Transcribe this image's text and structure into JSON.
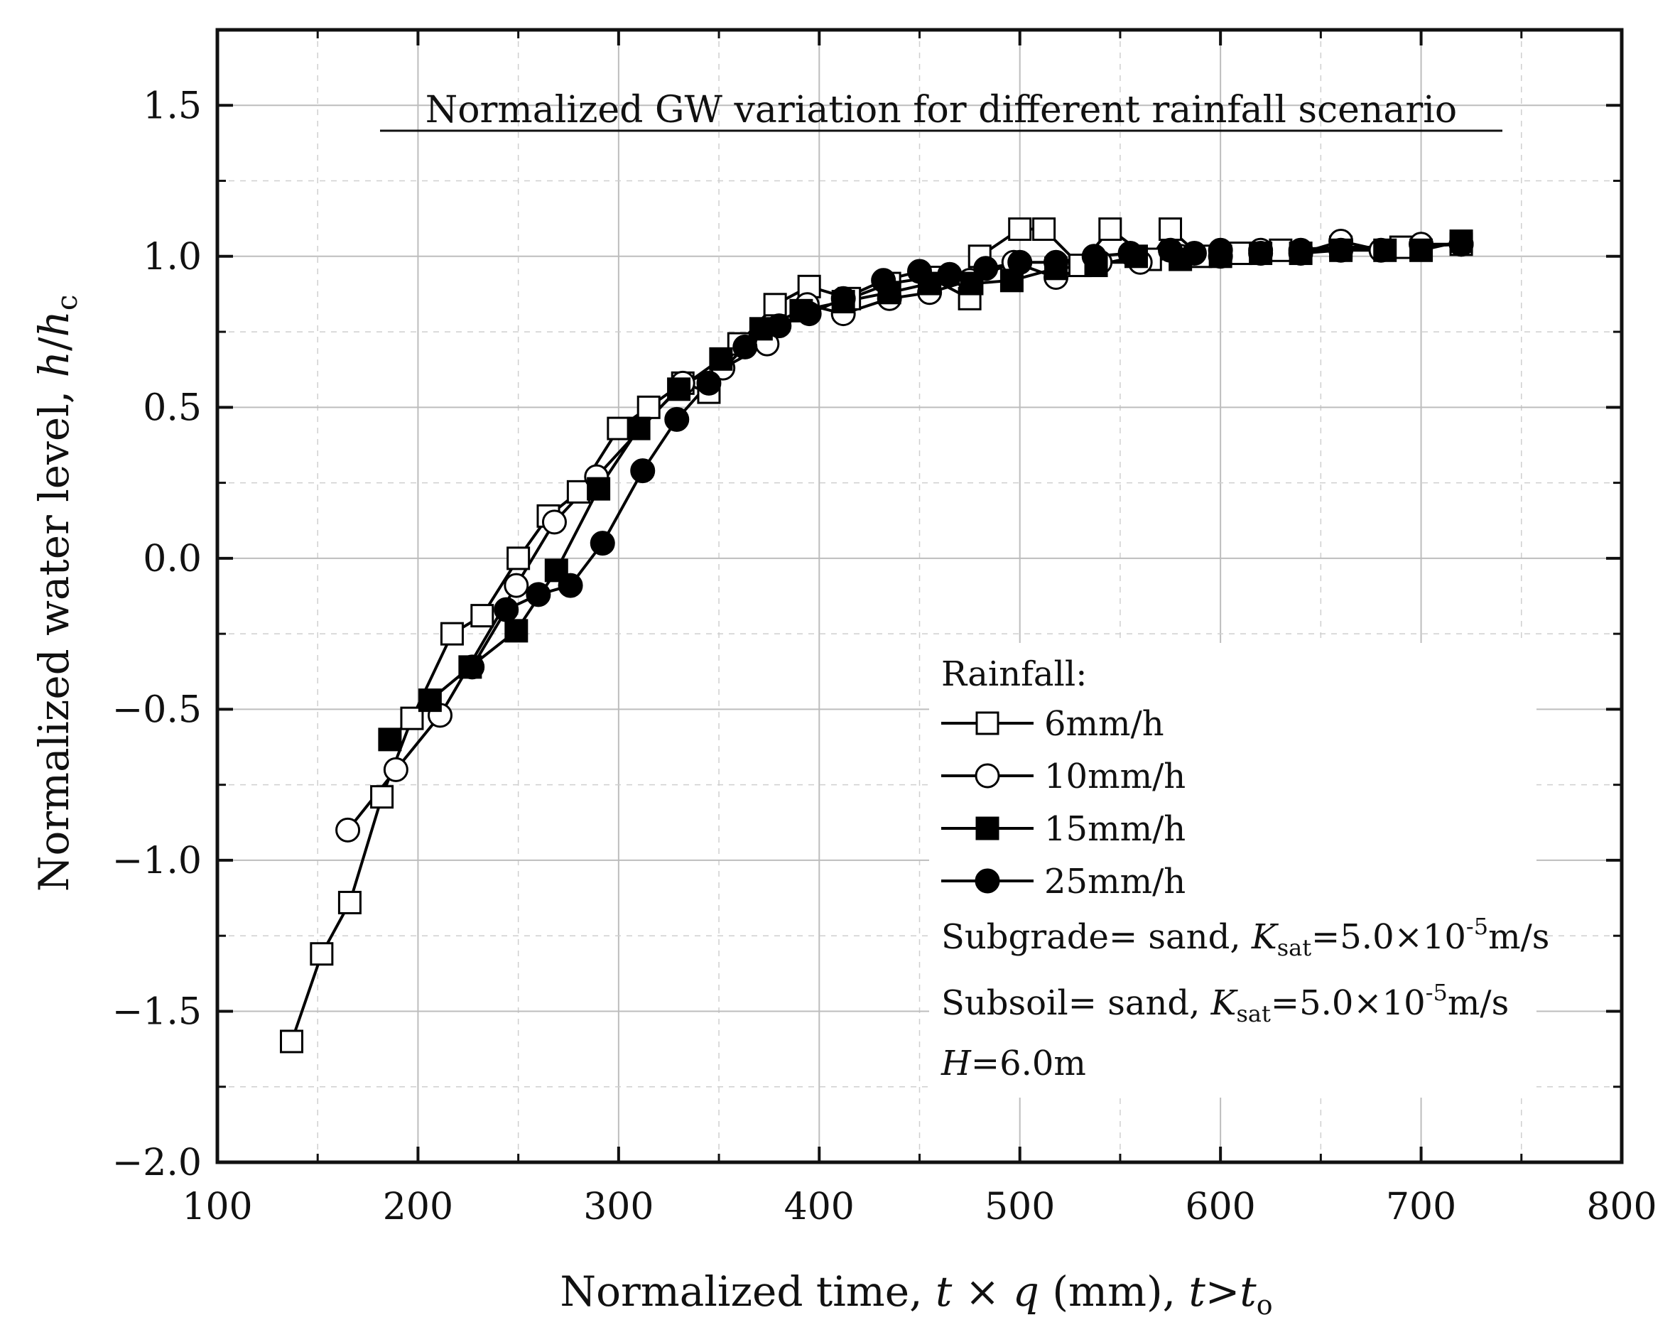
{
  "chart_data": {
    "type": "scatter",
    "title": "Normalized GW variation for different rainfall scenario",
    "xlabel": {
      "prefix": "Normalized time, ",
      "t": "t",
      "times": " × ",
      "q": "q",
      "unit": " (mm), ",
      "t2": "t",
      "gt": ">",
      "t3": "t",
      "sub": "o"
    },
    "ylabel": {
      "prefix": "Normalized water level, ",
      "h": "h",
      "slash": "/",
      "h2": "h",
      "sub": "c"
    },
    "xlim": [
      100,
      800
    ],
    "ylim": [
      -2.0,
      1.75
    ],
    "xticks": [
      100,
      200,
      300,
      400,
      500,
      600,
      700,
      800
    ],
    "xtick_labels": [
      "100",
      "200",
      "300",
      "400",
      "500",
      "600",
      "700",
      "800"
    ],
    "yticks": [
      -2.0,
      -1.5,
      -1.0,
      -0.5,
      0.0,
      0.5,
      1.0,
      1.5
    ],
    "ytick_labels": [
      "−2.0",
      "−1.5",
      "−1.0",
      "−0.5",
      "0.0",
      "0.5",
      "1.0",
      "1.5"
    ],
    "grid": true,
    "legend": {
      "title": "Rainfall:",
      "placement": "bottom-right"
    },
    "series": [
      {
        "name": "6mm/h",
        "marker": "square-open",
        "x": [
          137,
          152,
          166,
          182,
          197,
          217,
          232,
          250,
          265,
          280,
          300,
          315,
          332,
          345,
          360,
          378,
          395,
          415,
          435,
          455,
          475,
          480,
          500,
          512,
          530,
          545,
          565,
          575,
          590,
          610,
          630,
          660,
          690,
          720
        ],
        "y": [
          -1.6,
          -1.31,
          -1.14,
          -0.79,
          -0.53,
          -0.25,
          -0.19,
          0.0,
          0.14,
          0.22,
          0.43,
          0.5,
          0.58,
          0.55,
          0.71,
          0.84,
          0.9,
          0.86,
          0.91,
          0.93,
          0.86,
          1.0,
          1.09,
          1.09,
          0.97,
          1.09,
          0.99,
          1.09,
          1.0,
          1.01,
          1.02,
          1.03,
          1.03,
          1.04
        ]
      },
      {
        "name": "10mm/h",
        "marker": "circle-open",
        "x": [
          165,
          189,
          211,
          249,
          268,
          289,
          332,
          352,
          374,
          394,
          412,
          435,
          455,
          475,
          497,
          518,
          540,
          560,
          580,
          600,
          620,
          640,
          660,
          680,
          700,
          720
        ],
        "y": [
          -0.9,
          -0.7,
          -0.52,
          -0.09,
          0.12,
          0.27,
          0.58,
          0.63,
          0.71,
          0.84,
          0.81,
          0.86,
          0.88,
          0.92,
          0.98,
          0.93,
          0.98,
          0.98,
          1.0,
          1.0,
          1.02,
          1.01,
          1.05,
          1.02,
          1.04,
          1.04
        ]
      },
      {
        "name": "15mm/h",
        "marker": "square-filled",
        "x": [
          186,
          206,
          226,
          249,
          269,
          290,
          310,
          330,
          351,
          371,
          391,
          412,
          435,
          455,
          476,
          496,
          518,
          538,
          558,
          580,
          600,
          620,
          640,
          660,
          682,
          700,
          720
        ],
        "y": [
          -0.6,
          -0.47,
          -0.36,
          -0.24,
          -0.04,
          0.23,
          0.43,
          0.56,
          0.66,
          0.76,
          0.82,
          0.85,
          0.88,
          0.91,
          0.91,
          0.92,
          0.96,
          0.97,
          1.0,
          0.99,
          1.0,
          1.01,
          1.01,
          1.02,
          1.02,
          1.02,
          1.05
        ]
      },
      {
        "name": "25mm/h",
        "marker": "circle-filled",
        "x": [
          227,
          244,
          260,
          276,
          292,
          312,
          329,
          345,
          363,
          380,
          395,
          412,
          432,
          450,
          465,
          483,
          500,
          518,
          537,
          555,
          575,
          587,
          600,
          620,
          640,
          660,
          720
        ],
        "y": [
          -0.36,
          -0.17,
          -0.12,
          -0.09,
          0.05,
          0.29,
          0.46,
          0.58,
          0.7,
          0.77,
          0.81,
          0.86,
          0.92,
          0.95,
          0.94,
          0.96,
          0.98,
          0.98,
          1.0,
          1.01,
          1.02,
          1.01,
          1.02,
          1.01,
          1.02,
          1.02,
          1.04
        ]
      }
    ],
    "annotations": [
      {
        "key": "subgrade",
        "prefix": "Subgrade= sand, ",
        "k": "K",
        "ksub": "sat",
        "eq": "=5.0×10",
        "exp": "-5",
        "unit": "m/s"
      },
      {
        "key": "subsoil",
        "prefix": "Subsoil= sand, ",
        "k": "K",
        "ksub": "sat",
        "eq": "=5.0×10",
        "exp": "-5",
        "unit": "m/s"
      },
      {
        "key": "height",
        "var": "H",
        "value": "=6.0m"
      }
    ]
  }
}
